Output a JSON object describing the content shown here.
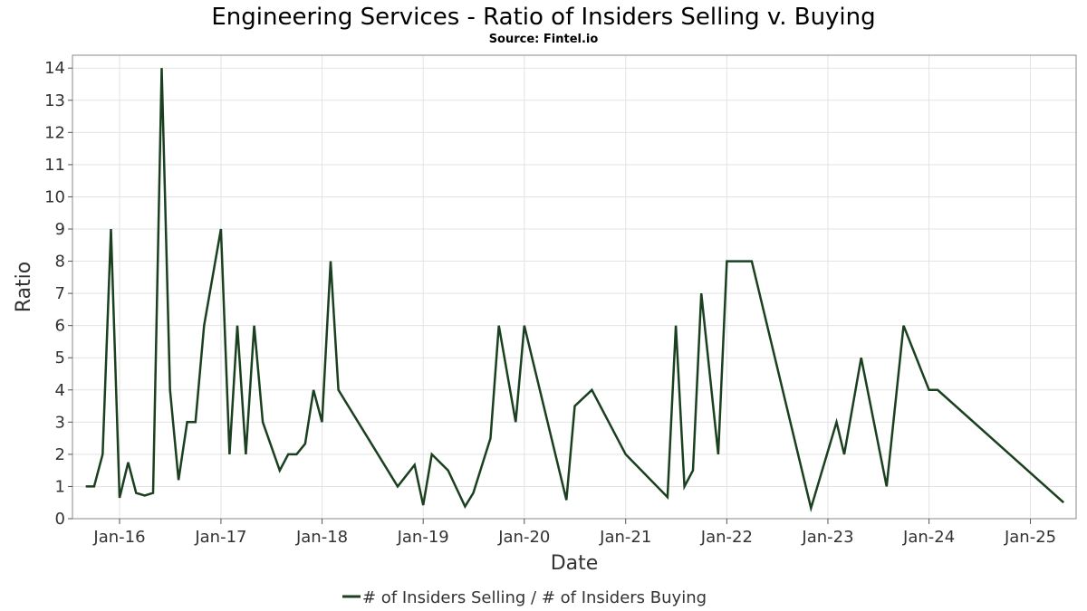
{
  "chart_data": {
    "type": "line",
    "title": "Engineering Services - Ratio of Insiders Selling v. Buying",
    "subtitle": "Source: Fintel.io",
    "xlabel": "Date",
    "ylabel": "Ratio",
    "x_ticks": [
      "Jan-16",
      "Jan-17",
      "Jan-18",
      "Jan-19",
      "Jan-20",
      "Jan-21",
      "Jan-22",
      "Jan-23",
      "Jan-24",
      "Jan-25"
    ],
    "y_ticks": [
      "0",
      "1",
      "2",
      "3",
      "4",
      "5",
      "6",
      "7",
      "8",
      "9",
      "10",
      "11",
      "12",
      "13",
      "14"
    ],
    "xlim": [
      "2015-07-15",
      "2025-06-15"
    ],
    "ylim": [
      0,
      14.4
    ],
    "grid": true,
    "legend_position": "bottom",
    "series": [
      {
        "name": "# of Insiders Selling / # of Insiders Buying",
        "color": "#1a4020",
        "points": [
          [
            "2015-09-01",
            1.0
          ],
          [
            "2015-10-01",
            1.0
          ],
          [
            "2015-11-01",
            2.0
          ],
          [
            "2015-12-01",
            9.0
          ],
          [
            "2016-01-01",
            0.65
          ],
          [
            "2016-02-01",
            1.75
          ],
          [
            "2016-03-01",
            0.8
          ],
          [
            "2016-04-01",
            0.72
          ],
          [
            "2016-05-01",
            0.8
          ],
          [
            "2016-06-01",
            14.0
          ],
          [
            "2016-07-01",
            4.0
          ],
          [
            "2016-08-01",
            1.2
          ],
          [
            "2016-09-01",
            3.0
          ],
          [
            "2016-10-01",
            3.0
          ],
          [
            "2016-11-01",
            6.0
          ],
          [
            "2017-01-01",
            9.0
          ],
          [
            "2017-02-01",
            2.0
          ],
          [
            "2017-03-01",
            6.0
          ],
          [
            "2017-04-01",
            2.0
          ],
          [
            "2017-05-01",
            6.0
          ],
          [
            "2017-06-01",
            3.0
          ],
          [
            "2017-08-01",
            1.5
          ],
          [
            "2017-09-01",
            2.0
          ],
          [
            "2017-10-01",
            2.0
          ],
          [
            "2017-11-01",
            2.33
          ],
          [
            "2017-12-01",
            4.0
          ],
          [
            "2018-01-01",
            3.0
          ],
          [
            "2018-02-01",
            8.0
          ],
          [
            "2018-03-01",
            4.0
          ],
          [
            "2018-10-01",
            1.0
          ],
          [
            "2018-12-01",
            1.67
          ],
          [
            "2019-01-01",
            0.42
          ],
          [
            "2019-02-01",
            2.0
          ],
          [
            "2019-04-01",
            1.5
          ],
          [
            "2019-06-01",
            0.38
          ],
          [
            "2019-07-01",
            0.8
          ],
          [
            "2019-09-01",
            2.5
          ],
          [
            "2019-10-01",
            6.0
          ],
          [
            "2019-12-01",
            3.0
          ],
          [
            "2020-01-01",
            6.0
          ],
          [
            "2020-06-01",
            0.58
          ],
          [
            "2020-07-01",
            3.5
          ],
          [
            "2020-09-01",
            4.0
          ],
          [
            "2021-01-01",
            2.0
          ],
          [
            "2021-06-01",
            0.67
          ],
          [
            "2021-07-01",
            6.0
          ],
          [
            "2021-08-01",
            1.0
          ],
          [
            "2021-09-01",
            1.5
          ],
          [
            "2021-10-01",
            7.0
          ],
          [
            "2021-12-01",
            2.0
          ],
          [
            "2022-01-01",
            8.0
          ],
          [
            "2022-04-01",
            8.0
          ],
          [
            "2022-11-01",
            0.33
          ],
          [
            "2023-02-01",
            3.0
          ],
          [
            "2023-03-01",
            2.0
          ],
          [
            "2023-05-01",
            5.0
          ],
          [
            "2023-08-01",
            1.0
          ],
          [
            "2023-10-01",
            6.0
          ],
          [
            "2024-01-01",
            4.0
          ],
          [
            "2024-02-01",
            4.0
          ],
          [
            "2025-05-01",
            0.5
          ]
        ]
      }
    ]
  }
}
